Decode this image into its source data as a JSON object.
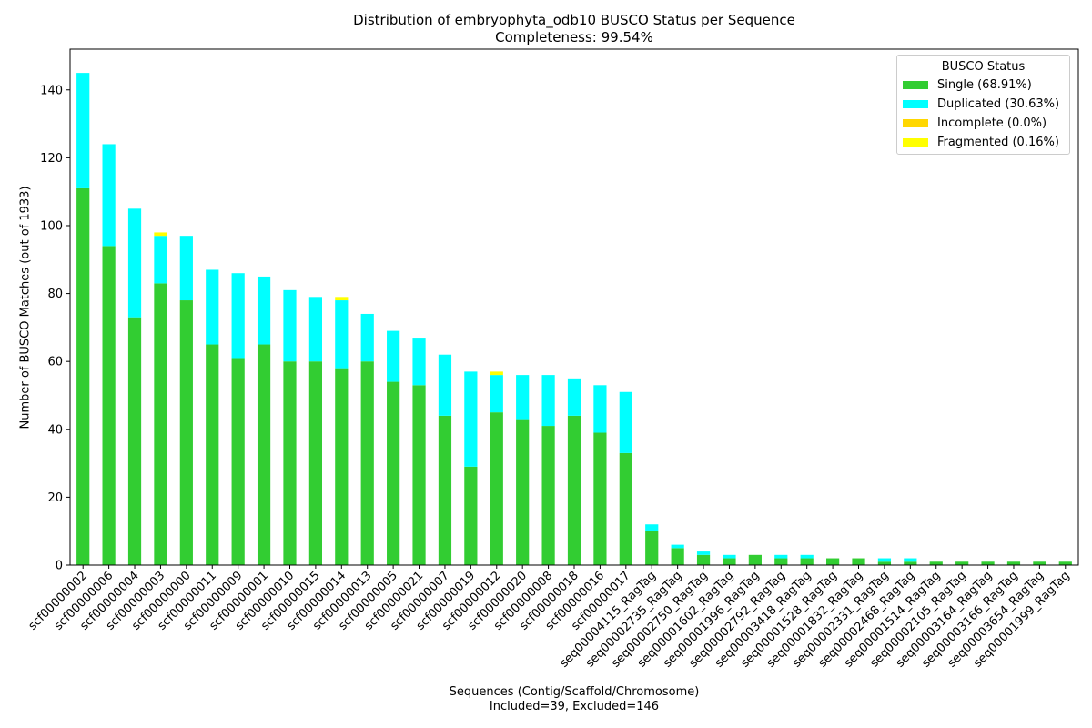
{
  "chart_data": {
    "type": "bar",
    "stacked": true,
    "title": [
      "Distribution of embryophyta_odb10 BUSCO Status per Sequence",
      "Completeness: 99.54%"
    ],
    "xlabel": [
      "Sequences (Contig/Scaffold/Chromosome)",
      "Included=39, Excluded=146"
    ],
    "ylabel": "Number of BUSCO Matches (out of 1933)",
    "ylim": [
      0,
      152
    ],
    "yticks": [
      0,
      20,
      40,
      60,
      80,
      100,
      120,
      140
    ],
    "legend_title": "BUSCO Status",
    "legend_position": "top-right",
    "categories": [
      "scf00000002",
      "scf00000006",
      "scf00000004",
      "scf00000003",
      "scf00000000",
      "scf00000011",
      "scf00000009",
      "scf00000001",
      "scf00000010",
      "scf00000015",
      "scf00000014",
      "scf00000013",
      "scf00000005",
      "scf00000021",
      "scf00000007",
      "scf00000019",
      "scf00000012",
      "scf00000020",
      "scf00000008",
      "scf00000018",
      "scf00000016",
      "scf00000017",
      "seq00004115_RagTag",
      "seq00002735_RagTag",
      "seq00002750_RagTag",
      "seq00001602_RagTag",
      "seq00001996_RagTag",
      "seq00002792_RagTag",
      "seq00003418_RagTag",
      "seq00001528_RagTag",
      "seq00001832_RagTag",
      "seq00002331_RagTag",
      "seq00002468_RagTag",
      "seq00001514_RagTag",
      "seq00002105_RagTag",
      "seq00003164_RagTag",
      "seq00003166_RagTag",
      "seq00003654_RagTag",
      "seq00001999_RagTag"
    ],
    "series": [
      {
        "name": "Single (68.91%)",
        "color": "#32CD32",
        "values": [
          111,
          94,
          73,
          83,
          78,
          65,
          61,
          65,
          60,
          60,
          58,
          60,
          54,
          53,
          44,
          29,
          45,
          43,
          41,
          44,
          39,
          33,
          10,
          5,
          3,
          2,
          3,
          2,
          2,
          2,
          2,
          1,
          1,
          1,
          1,
          1,
          1,
          1,
          1
        ]
      },
      {
        "name": "Duplicated (30.63%)",
        "color": "#00FFFF",
        "values": [
          34,
          30,
          32,
          14,
          19,
          22,
          25,
          20,
          21,
          19,
          20,
          14,
          15,
          14,
          18,
          28,
          11,
          13,
          15,
          11,
          14,
          18,
          2,
          1,
          1,
          1,
          0,
          1,
          1,
          0,
          0,
          1,
          1,
          0,
          0,
          0,
          0,
          0,
          0
        ]
      },
      {
        "name": "Incomplete (0.0%)",
        "color": "#FFD700",
        "values": [
          0,
          0,
          0,
          0,
          0,
          0,
          0,
          0,
          0,
          0,
          0,
          0,
          0,
          0,
          0,
          0,
          0,
          0,
          0,
          0,
          0,
          0,
          0,
          0,
          0,
          0,
          0,
          0,
          0,
          0,
          0,
          0,
          0,
          0,
          0,
          0,
          0,
          0,
          0
        ]
      },
      {
        "name": "Fragmented (0.16%)",
        "color": "#FFFF00",
        "values": [
          0,
          0,
          0,
          1,
          0,
          0,
          0,
          0,
          0,
          0,
          1,
          0,
          0,
          0,
          0,
          0,
          1,
          0,
          0,
          0,
          0,
          0,
          0,
          0,
          0,
          0,
          0,
          0,
          0,
          0,
          0,
          0,
          0,
          0,
          0,
          0,
          0,
          0,
          0
        ]
      }
    ]
  }
}
